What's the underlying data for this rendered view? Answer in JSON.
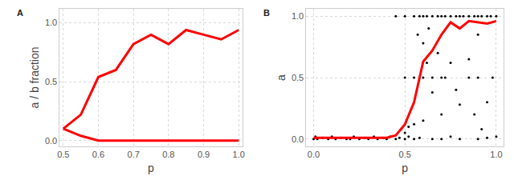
{
  "chart_data": [
    {
      "type": "line",
      "title": "A",
      "x_label": "p",
      "y_label": "a / b fraction",
      "xlim": [
        0.49,
        1.01
      ],
      "xticks": [
        {
          "value": 0.5,
          "label": "0.5"
        },
        {
          "value": 0.6,
          "label": "0.6"
        },
        {
          "value": 0.7,
          "label": "0.7"
        },
        {
          "value": 0.8,
          "label": "0.8"
        },
        {
          "value": 0.9,
          "label": "0.9"
        },
        {
          "value": 1,
          "label": "1.0"
        }
      ],
      "ylim": [
        -0.05,
        1.12
      ],
      "yticks": [
        {
          "value": 0,
          "label": "0.0"
        },
        {
          "value": 0.5,
          "label": "0.5"
        },
        {
          "value": 1,
          "label": "1.0"
        }
      ],
      "grid": true,
      "series": [
        {
          "type": "line",
          "color": "#ff0000",
          "line_style": "solid",
          "x": [
            0.5,
            0.55,
            0.6,
            0.65,
            0.7,
            0.75,
            0.8,
            0.85,
            0.9,
            0.95,
            1.0
          ],
          "values": [
            0.1,
            0.22,
            0.54,
            0.6,
            0.82,
            0.9,
            0.82,
            0.94,
            0.9,
            0.86,
            0.94
          ]
        },
        {
          "type": "line",
          "color": "#ff0000",
          "line_style": "solid",
          "x": [
            0.5,
            0.55,
            0.6,
            0.65,
            0.7,
            0.75,
            0.8,
            0.85,
            0.9,
            0.95,
            1.0
          ],
          "values": [
            0.1,
            0.04,
            0,
            0,
            0,
            0,
            0,
            0,
            0,
            0,
            0
          ]
        }
      ]
    },
    {
      "type": "scatter",
      "title": "B",
      "x_label": "p",
      "y_label": "a",
      "xlim": [
        -0.04,
        1.04
      ],
      "xticks": [
        {
          "value": 0,
          "label": "0.0"
        },
        {
          "value": 0.5,
          "label": "0.5"
        },
        {
          "value": 1,
          "label": "1.0"
        }
      ],
      "ylim": [
        -0.06,
        1.06
      ],
      "yticks": [
        {
          "value": 0,
          "label": "0.0"
        },
        {
          "value": 0.5,
          "label": "0.5"
        },
        {
          "value": 1,
          "label": "1.0"
        }
      ],
      "grid": true,
      "series": [
        {
          "type": "scatter",
          "color": "#000000",
          "marker": "circle",
          "x": [
            0.0,
            0.01,
            0.02,
            0.05,
            0.08,
            0.1,
            0.12,
            0.15,
            0.18,
            0.2,
            0.22,
            0.25,
            0.28,
            0.3,
            0.33,
            0.35,
            0.38,
            0.4,
            0.42,
            0.45,
            0.47,
            0.5,
            0.52,
            0.55,
            0.58,
            0.65,
            0.7,
            0.75,
            0.8,
            0.9,
            0.95,
            1.0,
            0.48,
            0.52,
            0.55,
            0.5,
            0.6,
            0.5,
            0.55,
            0.58,
            0.6,
            0.65,
            0.7,
            0.72,
            0.85,
            0.9,
            0.98,
            0.45,
            0.5,
            0.55,
            0.58,
            0.6,
            0.62,
            0.65,
            0.68,
            0.7,
            0.72,
            0.75,
            0.78,
            0.8,
            0.82,
            0.85,
            0.88,
            0.9,
            0.92,
            0.95,
            0.97,
            1.0,
            0.57,
            0.6,
            0.62,
            0.65,
            0.68,
            0.75,
            0.8,
            0.85,
            0.88,
            0.92,
            0.95,
            0.7,
            0.9,
            0.78,
            0.63
          ],
          "values": [
            0,
            0.02,
            0,
            0.01,
            0,
            0.02,
            0,
            0.01,
            0,
            0,
            0.02,
            0,
            0.01,
            0,
            0.02,
            0,
            0.01,
            0,
            0.02,
            0,
            0.01,
            0,
            0.02,
            0,
            0.01,
            0,
            0,
            0.02,
            0,
            0,
            0.01,
            0.02,
            0.08,
            0.1,
            0.12,
            0.05,
            0.15,
            0.5,
            0.5,
            0.5,
            0.5,
            0.5,
            0.5,
            0.5,
            0.5,
            0.5,
            0.5,
            1,
            1,
            1,
            1,
            1,
            1,
            1,
            1,
            1,
            1,
            1,
            1,
            1,
            1,
            1,
            1,
            1,
            1,
            1,
            1,
            1,
            0.85,
            0.78,
            0.62,
            0.38,
            0.7,
            0.62,
            0.28,
            0.65,
            0.2,
            0.08,
            0.3,
            0.2,
            0.85,
            0.4,
            0.9
          ]
        },
        {
          "type": "line",
          "color": "#ff0000",
          "line_style": "solid",
          "x": [
            0.0,
            0.05,
            0.1,
            0.15,
            0.2,
            0.25,
            0.3,
            0.35,
            0.4,
            0.45,
            0.5,
            0.55,
            0.6,
            0.65,
            0.7,
            0.75,
            0.8,
            0.85,
            0.9,
            0.95,
            1.0
          ],
          "values": [
            0.01,
            0.01,
            0.01,
            0.01,
            0.01,
            0.01,
            0.01,
            0.01,
            0.01,
            0.03,
            0.12,
            0.3,
            0.63,
            0.72,
            0.85,
            0.95,
            0.9,
            0.96,
            0.95,
            0.94,
            0.96
          ]
        }
      ]
    }
  ]
}
